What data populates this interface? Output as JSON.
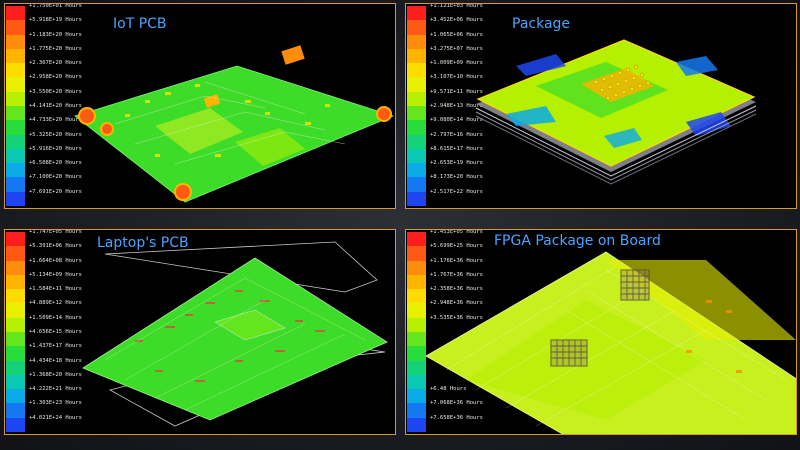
{
  "panels": [
    {
      "title": "IoT PCB",
      "legend": [
        "+1.750E+01 Hours",
        "+5.918E+19 Hours",
        "+1.183E+20 Hours",
        "+1.775E+20 Hours",
        "+2.367E+20 Hours",
        "+2.958E+20 Hours",
        "+3.550E+20 Hours",
        "+4.141E+20 Hours",
        "+4.733E+20 Hours",
        "+5.325E+20 Hours",
        "+5.916E+20 Hours",
        "+6.508E+20 Hours",
        "+7.100E+20 Hours",
        "+7.691E+20 Hours"
      ]
    },
    {
      "title": "Package",
      "legend": [
        "+1.121E+03 Hours",
        "+3.452E+06 Hours",
        "+1.065E+06 Hours",
        "+3.275E+07 Hours",
        "+1.009E+09 Hours",
        "+3.107E+10 Hours",
        "+9.571E+11 Hours",
        "+2.948E+13 Hours",
        "+9.080E+14 Hours",
        "+2.797E+16 Hours",
        "+8.615E+17 Hours",
        "+2.653E+19 Hours",
        "+8.173E+20 Hours",
        "+2.517E+22 Hours"
      ]
    },
    {
      "title": "Laptop's PCB",
      "legend": [
        "+1.747E+05 Hours",
        "+5.391E+06 Hours",
        "+1.664E+08 Hours",
        "+5.134E+09 Hours",
        "+1.584E+11 Hours",
        "+4.889E+12 Hours",
        "+1.509E+14 Hours",
        "+4.656E+15 Hours",
        "+1.437E+17 Hours",
        "+4.434E+18 Hours",
        "+1.368E+20 Hours",
        "+4.222E+21 Hours",
        "+1.303E+23 Hours",
        "+4.021E+24 Hours"
      ]
    },
    {
      "title": "FPGA Package on Board",
      "legend": [
        "+1.453E+05 Hours",
        "+5.699E+25 Hours",
        "+1.176E+36 Hours",
        "+1.767E+36 Hours",
        "+2.358E+36 Hours",
        "+2.948E+36 Hours",
        "+3.535E+36 Hours",
        "",
        "",
        "",
        "",
        "+6.48 Hours",
        "+7.068E+36 Hours",
        "+7.658E+36 Hours"
      ]
    }
  ],
  "legend_colors": [
    "#ff1e1e",
    "#ff5a14",
    "#ff8c0a",
    "#ffb400",
    "#ffdc00",
    "#e6f000",
    "#b4f000",
    "#64e61e",
    "#28dc3c",
    "#14d278",
    "#0ac8b4",
    "#0aaae6",
    "#1478f0",
    "#1e46f0"
  ],
  "colors": {
    "frame_border": "#d79a2e",
    "title_text": "#4aa3ff",
    "board_green": "#3cdc28",
    "board_yellow_green": "#c8f01e",
    "background": "#1c1e23"
  }
}
